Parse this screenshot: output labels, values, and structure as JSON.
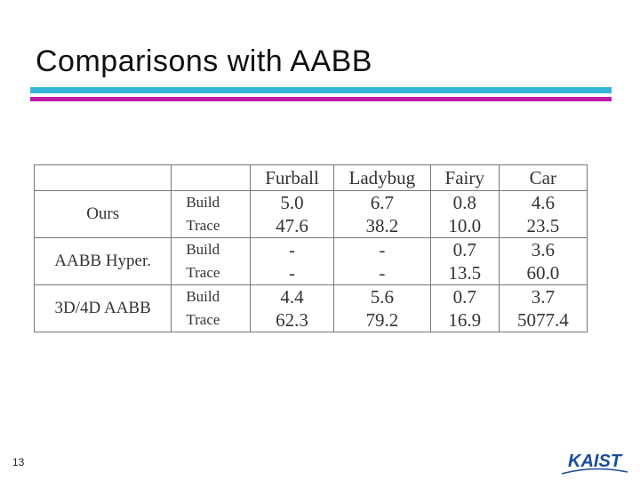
{
  "slide": {
    "title": "Comparisons with AABB",
    "page_number": "13",
    "logo_text": "KAIST"
  },
  "table": {
    "columns": [
      "Furball",
      "Ladybug",
      "Fairy",
      "Car"
    ],
    "groups": [
      {
        "method": "Ours",
        "rows": [
          {
            "op": "Build",
            "values": [
              "5.0",
              "6.7",
              "0.8",
              "4.6"
            ]
          },
          {
            "op": "Trace",
            "values": [
              "47.6",
              "38.2",
              "10.0",
              "23.5"
            ]
          }
        ]
      },
      {
        "method": "AABB Hyper.",
        "rows": [
          {
            "op": "Build",
            "values": [
              "-",
              "-",
              "0.7",
              "3.6"
            ]
          },
          {
            "op": "Trace",
            "values": [
              "-",
              "-",
              "13.5",
              "60.0"
            ]
          }
        ]
      },
      {
        "method": "3D/4D AABB",
        "rows": [
          {
            "op": "Build",
            "values": [
              "4.4",
              "5.6",
              "0.7",
              "3.7"
            ]
          },
          {
            "op": "Trace",
            "values": [
              "62.3",
              "79.2",
              "16.9",
              "5077.4"
            ]
          }
        ]
      }
    ]
  },
  "colors": {
    "title_bar_top": "#33b6d9",
    "title_bar_bottom": "#c21aa8",
    "logo": "#1a4c9c"
  }
}
